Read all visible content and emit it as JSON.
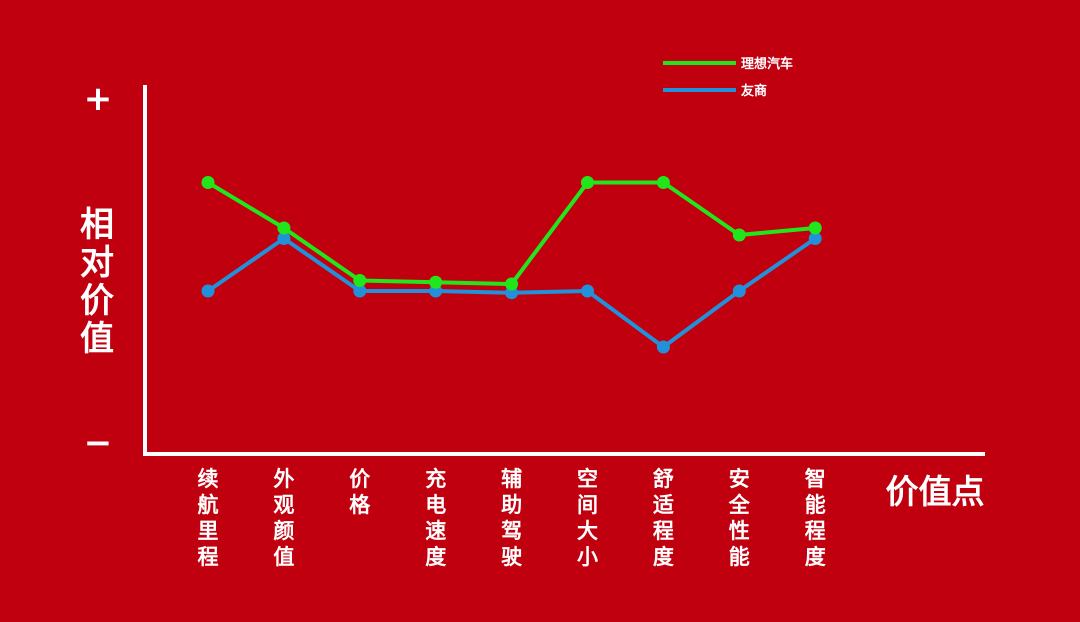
{
  "chart_data": {
    "type": "line",
    "title": "",
    "xlabel": "价值点",
    "ylabel": "相对价值",
    "y_top_label": "+",
    "y_bottom_label": "−",
    "ylim": [
      0,
      10
    ],
    "categories": [
      "续航里程",
      "外观颜值",
      "价格",
      "充电速度",
      "辅助驾驶",
      "空间大小",
      "舒适程度",
      "安全性能",
      "智能程度"
    ],
    "series": [
      {
        "name": "理想汽车",
        "color": "#22e61c",
        "values": [
          7.5,
          6.2,
          4.7,
          4.65,
          4.6,
          7.5,
          7.5,
          6.0,
          6.2
        ]
      },
      {
        "name": "友商",
        "color": "#2391d9",
        "values": [
          4.4,
          5.9,
          4.4,
          4.4,
          4.35,
          4.4,
          2.8,
          4.4,
          5.9
        ]
      }
    ],
    "grid": false,
    "legend_position": "top-right"
  }
}
